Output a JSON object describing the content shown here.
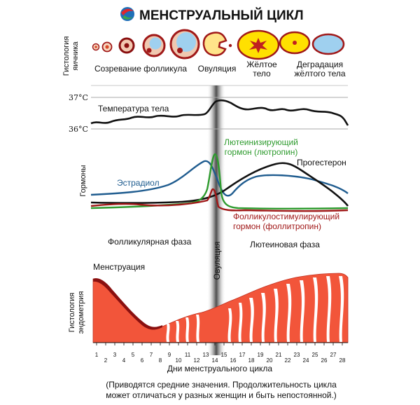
{
  "title": "МЕНСТРУАЛЬНЫЙ ЦИКЛ",
  "logo_colors": {
    "red": "#e0262b",
    "blue": "#1f6fb8",
    "green": "#3aa84a"
  },
  "ovary": {
    "side_label": [
      "Гистология",
      "яичника"
    ],
    "stage_labels": {
      "maturation": "Созревание фолликула",
      "ovulation": "Овуляция",
      "corpus_luteum": [
        "Жёлтое",
        "тело"
      ],
      "degradation": [
        "Деградация",
        "жёлтого тела"
      ]
    }
  },
  "temperature": {
    "label": "Температура тела",
    "axis_ticks": [
      "37°C",
      "36°C"
    ]
  },
  "hormones": {
    "side_label": "Гормоны",
    "lh_label": [
      "Лютеинизирующий",
      "гормон (лютропин)"
    ],
    "estradiol_label": "Эстрадиол",
    "progesterone_label": "Прогестерон",
    "fsh_label": [
      "Фолликулостимулирующий",
      "гормон (фоллитропин)"
    ],
    "colors": {
      "lh": "#2e9b2e",
      "estradiol": "#1f5c8f",
      "progesterone": "#111111",
      "fsh": "#a01818",
      "temperature": "#111111"
    }
  },
  "phases": {
    "follicular": "Фолликулярная фаза",
    "ovulation": "Овуляция",
    "luteal": "Лютеиновая фаза"
  },
  "endometrium": {
    "side_label": [
      "Гистология",
      "эндометрия"
    ],
    "menstruation_label": "Менструация",
    "color": "#f2553a"
  },
  "days_axis": {
    "label": "Дни менструального цикла",
    "days": [
      "1",
      "2",
      "3",
      "4",
      "5",
      "6",
      "7",
      "8",
      "9",
      "10",
      "11",
      "12",
      "13",
      "14",
      "15",
      "16",
      "17",
      "18",
      "19",
      "20",
      "21",
      "22",
      "23",
      "24",
      "25",
      "26",
      "27",
      "28"
    ]
  },
  "footnote": [
    "(Приводятся средние значения. Продолжительность цикла",
    "может отличаться у разных женщин и быть непостоянной.)"
  ]
}
